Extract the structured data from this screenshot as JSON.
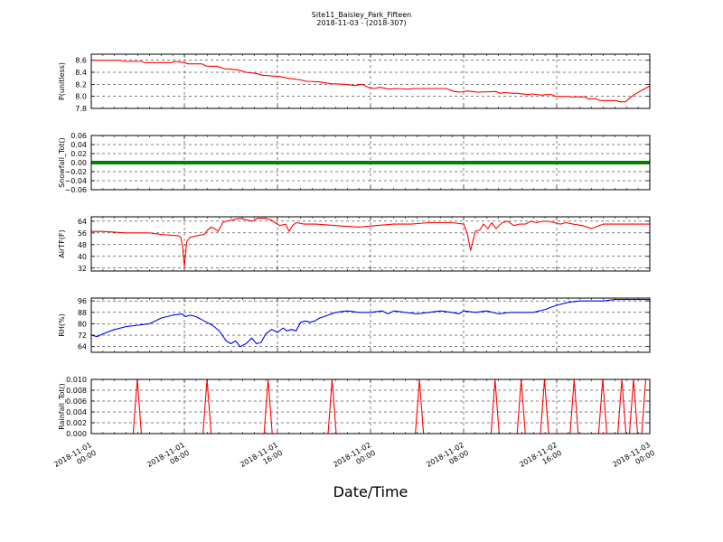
{
  "figure": {
    "title_line1": "Site11_Baisley_Park_Fifteen",
    "title_line2": "2018-11-03 - (2018-307)",
    "xlabel": "Date/Time",
    "x_tick_labels": [
      [
        "2018-11-01",
        "00:00"
      ],
      [
        "2018-11-01",
        "08:00"
      ],
      [
        "2018-11-01",
        "16:00"
      ],
      [
        "2018-11-02",
        "00:00"
      ],
      [
        "2018-11-02",
        "08:00"
      ],
      [
        "2018-11-02",
        "16:00"
      ],
      [
        "2018-11-03",
        "00:00"
      ]
    ]
  },
  "chart_data": [
    {
      "type": "line",
      "ylabel": "P(unitless)",
      "color": "#ff0000",
      "ylim": [
        7.8,
        8.7
      ],
      "yticks": [
        8.6,
        8.4,
        8.2,
        8.0,
        7.8
      ],
      "ytick_labels": [
        "8.6",
        "8.4",
        "8.2",
        "8.0",
        "7.8"
      ],
      "xlim_hours": [
        0,
        48
      ],
      "x": [
        0,
        2.5,
        2.8,
        4.3,
        4.6,
        6.9,
        7.2,
        8.0,
        8.3,
        9.5,
        9.9,
        10.8,
        11.4,
        12.6,
        13.3,
        14.2,
        14.7,
        16.2,
        16.9,
        17.8,
        18.5,
        19.6,
        20.6,
        21.8,
        22.6,
        23.3,
        23.8,
        24.3,
        24.8,
        25.6,
        26.3,
        27.2,
        27.8,
        30.5,
        31.2,
        31.7,
        32.3,
        32.7,
        33.2,
        34.8,
        35.1,
        35.4,
        35.8,
        36.2,
        36.6,
        37.6,
        37.9,
        38.7,
        39.1,
        39.6,
        39.9,
        41.0,
        41.3,
        42.4,
        42.7,
        43.4,
        43.7,
        45.1,
        45.4,
        45.9,
        46.6,
        47.3,
        48
      ],
      "y": [
        8.6,
        8.6,
        8.58,
        8.58,
        8.56,
        8.56,
        8.58,
        8.56,
        8.54,
        8.54,
        8.5,
        8.5,
        8.46,
        8.44,
        8.4,
        8.38,
        8.35,
        8.33,
        8.3,
        8.28,
        8.25,
        8.24,
        8.21,
        8.2,
        8.18,
        8.2,
        8.15,
        8.13,
        8.15,
        8.12,
        8.13,
        8.12,
        8.13,
        8.13,
        8.08,
        8.07,
        8.09,
        8.08,
        8.07,
        8.08,
        8.05,
        8.06,
        8.06,
        8.05,
        8.05,
        8.03,
        8.04,
        8.02,
        8.03,
        8.03,
        8.0,
        8.0,
        7.99,
        7.99,
        7.96,
        7.96,
        7.93,
        7.93,
        7.91,
        7.91,
        8.02,
        8.1,
        8.17
      ]
    },
    {
      "type": "line",
      "ylabel": "Snowfall_Tot()",
      "color": "#008000",
      "ylim": [
        -0.06,
        0.06
      ],
      "yticks": [
        0.06,
        0.04,
        0.02,
        0.0,
        -0.02,
        -0.04,
        -0.06
      ],
      "ytick_labels": [
        "0.06",
        "0.04",
        "0.02",
        "0.00",
        "−0.02",
        "−0.04",
        "−0.06"
      ],
      "xlim_hours": [
        0,
        48
      ],
      "x": [
        0,
        48
      ],
      "y": [
        0,
        0
      ]
    },
    {
      "type": "line",
      "ylabel": "AirTF(F)",
      "color": "#ff0000",
      "ylim": [
        30,
        67
      ],
      "yticks": [
        64,
        56,
        48,
        40,
        32
      ],
      "ytick_labels": [
        "64",
        "56",
        "48",
        "40",
        "32"
      ],
      "xlim_hours": [
        0,
        48
      ],
      "x": [
        0,
        1,
        3,
        5,
        6,
        7.5,
        7.7,
        7.85,
        8.0,
        8.2,
        8.5,
        9,
        9.7,
        10,
        10.3,
        10.6,
        10.9,
        11.3,
        11.6,
        12.2,
        12.8,
        13.3,
        13.8,
        14.3,
        14.9,
        15.4,
        15.8,
        16.2,
        16.7,
        17.0,
        17.3,
        17.6,
        18.3,
        19.3,
        21,
        23,
        24.5,
        26,
        27.5,
        29,
        31,
        32,
        32.3,
        32.6,
        33.0,
        33.4,
        33.7,
        34.1,
        34.4,
        34.8,
        35.3,
        35.8,
        36.3,
        36.8,
        37.3,
        37.8,
        38.3,
        38.8,
        39.3,
        39.8,
        40.3,
        40.8,
        41.4,
        42.2,
        43,
        44,
        45,
        46,
        47,
        48
      ],
      "y": [
        57,
        57,
        56,
        56,
        55,
        54,
        53,
        46,
        33,
        50,
        53,
        54,
        55,
        58,
        60,
        59,
        57,
        63,
        64,
        65,
        66,
        65,
        64,
        66,
        66,
        65,
        63,
        61,
        62,
        57,
        61,
        63,
        62,
        62,
        61,
        60,
        61,
        62,
        62,
        63,
        63,
        62,
        56,
        44,
        57,
        58,
        62,
        59,
        63,
        59,
        63,
        64,
        61,
        62,
        62,
        64,
        63,
        64,
        64,
        63,
        62,
        63,
        62,
        61,
        59,
        62,
        62,
        62,
        62,
        62
      ]
    },
    {
      "type": "line",
      "ylabel": "RH(%)",
      "color": "#0000ff",
      "ylim": [
        60,
        98
      ],
      "yticks": [
        96,
        88,
        80,
        72,
        64
      ],
      "ytick_labels": [
        "96",
        "88",
        "80",
        "72",
        "64"
      ],
      "xlim_hours": [
        0,
        48
      ],
      "x": [
        0,
        0.5,
        1,
        2,
        3,
        4,
        5,
        6,
        7,
        7.8,
        8.1,
        8.5,
        9,
        9.7,
        10.4,
        11,
        11.6,
        12,
        12.4,
        12.8,
        13.3,
        13.8,
        14.2,
        14.6,
        15,
        15.5,
        16,
        16.5,
        16.8,
        17.2,
        17.6,
        18,
        18.4,
        18.8,
        19.2,
        19.6,
        20,
        21,
        22,
        23,
        24,
        25,
        25.5,
        26,
        27,
        28,
        29,
        30,
        31,
        31.6,
        32,
        33,
        34,
        35,
        36,
        37,
        38,
        39,
        40,
        41,
        42,
        43,
        44,
        45,
        46,
        47,
        48
      ],
      "y": [
        72,
        71,
        73,
        76,
        78,
        79,
        80,
        84,
        86,
        87,
        85,
        86,
        85,
        82,
        79,
        75,
        68,
        66,
        68,
        64,
        66,
        70,
        66,
        67,
        73,
        76,
        74,
        77,
        75,
        76,
        75,
        81,
        82,
        81,
        82,
        84,
        85,
        88,
        89,
        88,
        88,
        89,
        87,
        89,
        88,
        87,
        88,
        89,
        88,
        87,
        89,
        88,
        89,
        87,
        88,
        88,
        88,
        90,
        93,
        95,
        96,
        96,
        96,
        97,
        97,
        97,
        97
      ]
    },
    {
      "type": "line",
      "ylabel": "Rainfall_Tot()",
      "color": "#ff0000",
      "ylim": [
        0.0,
        0.01
      ],
      "yticks": [
        0.01,
        0.008,
        0.006,
        0.004,
        0.002,
        0.0
      ],
      "ytick_labels": [
        "0.010",
        "0.008",
        "0.006",
        "0.004",
        "0.002",
        "0.000"
      ],
      "xlim_hours": [
        0,
        48
      ],
      "x": [
        0,
        3.6,
        3.95,
        4.3,
        9.6,
        9.95,
        10.3,
        14.85,
        15.2,
        15.55,
        20.35,
        20.7,
        21.05,
        27.85,
        28.2,
        28.55,
        34.35,
        34.7,
        35.05,
        36.6,
        36.95,
        37.3,
        38.6,
        38.95,
        39.3,
        41.15,
        41.5,
        41.85,
        43.6,
        43.95,
        44.3,
        45.25,
        45.6,
        45.95,
        46.25,
        46.6,
        46.95,
        47.3,
        47.65,
        48
      ],
      "y": [
        0,
        0,
        0.01,
        0,
        0,
        0.01,
        0,
        0,
        0.01,
        0,
        0,
        0.01,
        0,
        0,
        0.01,
        0,
        0,
        0.01,
        0,
        0,
        0.01,
        0,
        0,
        0.01,
        0,
        0,
        0.01,
        0,
        0,
        0.01,
        0,
        0,
        0.01,
        0,
        0,
        0.01,
        0,
        0,
        0.01,
        0.01
      ]
    }
  ]
}
